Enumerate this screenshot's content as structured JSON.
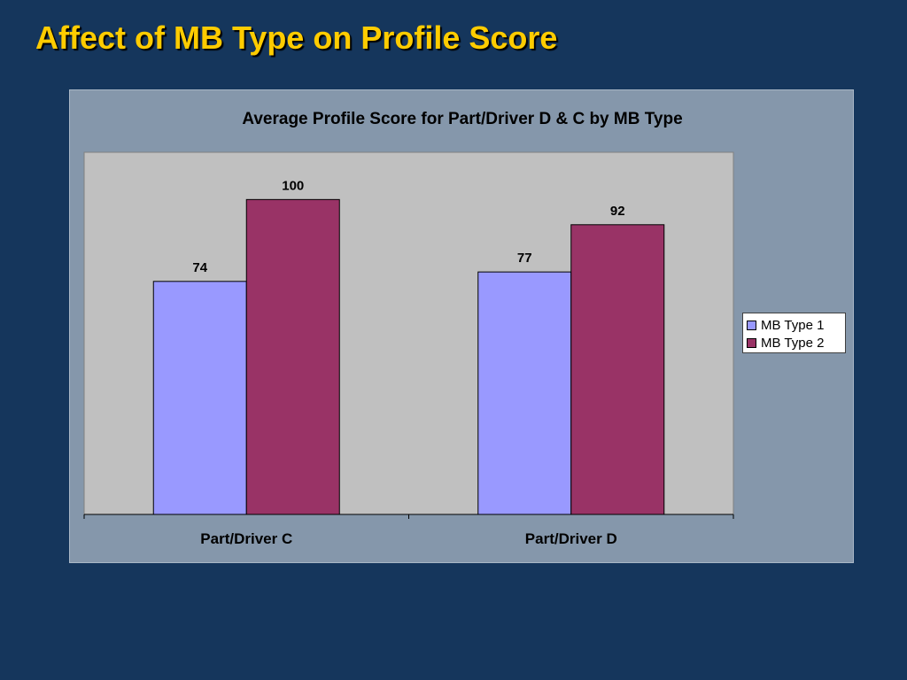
{
  "slide": {
    "title": "Affect of MB Type on Profile Score",
    "background": "#15365c",
    "title_color": "#ffcc00"
  },
  "chart_data": {
    "type": "bar",
    "title": "Average Profile Score for Part/Driver D & C by MB Type",
    "categories": [
      "Part/Driver C",
      "Part/Driver D"
    ],
    "series": [
      {
        "name": "MB Type 1",
        "values": [
          74,
          77
        ],
        "color": "#9999ff"
      },
      {
        "name": "MB Type 2",
        "values": [
          100,
          92
        ],
        "color": "#993366"
      }
    ],
    "ylim": [
      0,
      115
    ],
    "grid": false,
    "legend": "right",
    "data_labels": true,
    "plot_background": "#c0c0c0"
  }
}
